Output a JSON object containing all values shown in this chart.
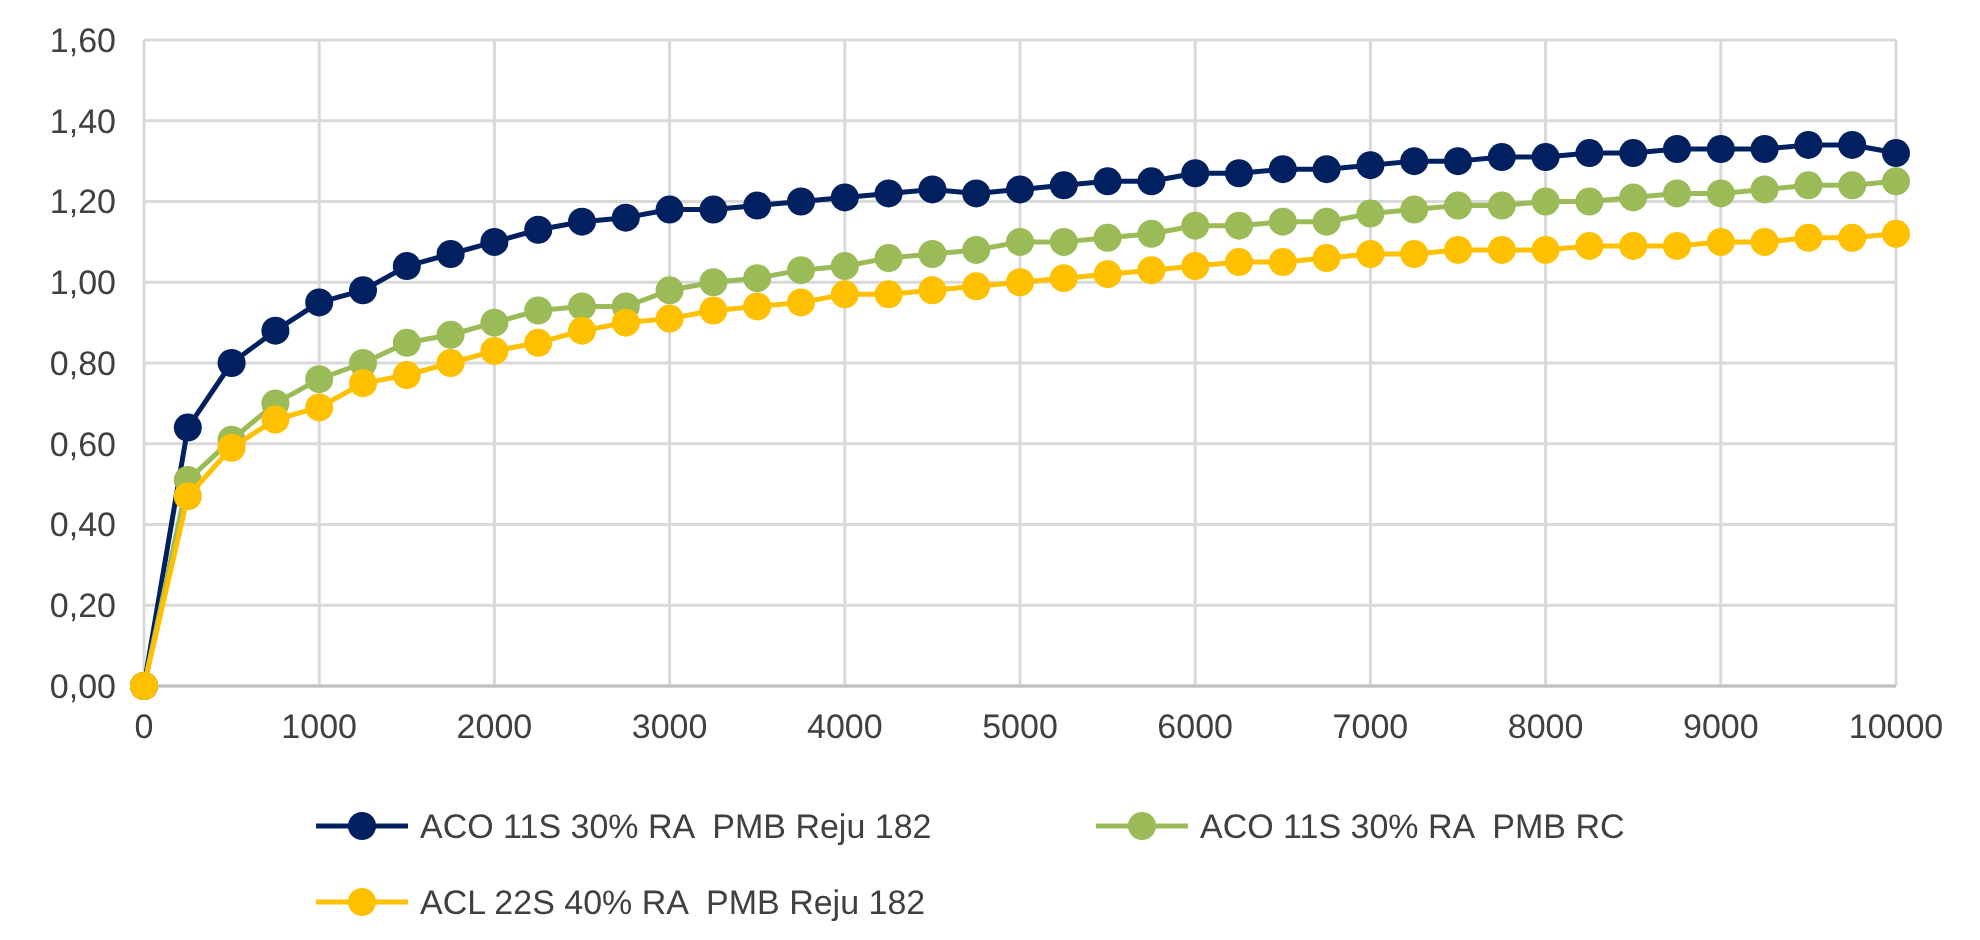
{
  "chart_data": {
    "type": "line",
    "x": [
      0,
      250,
      500,
      750,
      1000,
      1250,
      1500,
      1750,
      2000,
      2250,
      2500,
      2750,
      3000,
      3250,
      3500,
      3750,
      4000,
      4250,
      4500,
      4750,
      5000,
      5250,
      5500,
      5750,
      6000,
      6250,
      6500,
      6750,
      7000,
      7250,
      7500,
      7750,
      8000,
      8250,
      8500,
      8750,
      9000,
      9250,
      9500,
      9750,
      10000
    ],
    "series": [
      {
        "name": "ACO 11S 30% RA  PMB Reju 182",
        "color": "#002060",
        "values": [
          0,
          0.64,
          0.8,
          0.88,
          0.95,
          0.98,
          1.04,
          1.07,
          1.1,
          1.13,
          1.15,
          1.16,
          1.18,
          1.18,
          1.19,
          1.2,
          1.21,
          1.22,
          1.23,
          1.22,
          1.23,
          1.24,
          1.25,
          1.25,
          1.27,
          1.27,
          1.28,
          1.28,
          1.29,
          1.3,
          1.3,
          1.31,
          1.31,
          1.32,
          1.32,
          1.33,
          1.33,
          1.33,
          1.34,
          1.34,
          1.32
        ]
      },
      {
        "name": "ACO 11S 30% RA  PMB RC",
        "color": "#9bbb59",
        "values": [
          0,
          0.51,
          0.61,
          0.7,
          0.76,
          0.8,
          0.85,
          0.87,
          0.9,
          0.93,
          0.94,
          0.94,
          0.98,
          1.0,
          1.01,
          1.03,
          1.04,
          1.06,
          1.07,
          1.08,
          1.1,
          1.1,
          1.11,
          1.12,
          1.14,
          1.14,
          1.15,
          1.15,
          1.17,
          1.18,
          1.19,
          1.19,
          1.2,
          1.2,
          1.21,
          1.22,
          1.22,
          1.23,
          1.24,
          1.24,
          1.25
        ]
      },
      {
        "name": "ACL 22S 40% RA  PMB Reju 182",
        "color": "#ffc000",
        "values": [
          0,
          0.47,
          0.59,
          0.66,
          0.69,
          0.75,
          0.77,
          0.8,
          0.83,
          0.85,
          0.88,
          0.9,
          0.91,
          0.93,
          0.94,
          0.95,
          0.97,
          0.97,
          0.98,
          0.99,
          1.0,
          1.01,
          1.02,
          1.03,
          1.04,
          1.05,
          1.05,
          1.06,
          1.07,
          1.07,
          1.08,
          1.08,
          1.08,
          1.09,
          1.09,
          1.09,
          1.1,
          1.1,
          1.11,
          1.11,
          1.12
        ]
      }
    ],
    "xlim": [
      0,
      10000
    ],
    "xticks": [
      0,
      1000,
      2000,
      3000,
      4000,
      5000,
      6000,
      7000,
      8000,
      9000,
      10000
    ],
    "ylim": [
      0,
      1.6
    ],
    "yticks": [
      {
        "value": 0,
        "label": "0,00"
      },
      {
        "value": 0.2,
        "label": "0,20"
      },
      {
        "value": 0.4,
        "label": "0,40"
      },
      {
        "value": 0.6,
        "label": "0,60"
      },
      {
        "value": 0.8,
        "label": "0,80"
      },
      {
        "value": 1.0,
        "label": "1,00"
      },
      {
        "value": 1.2,
        "label": "1,20"
      },
      {
        "value": 1.4,
        "label": "1,40"
      },
      {
        "value": 1.6,
        "label": "1,60"
      }
    ],
    "grid": true,
    "legend": "bottom",
    "marker": "circle",
    "line_style": "solid"
  }
}
